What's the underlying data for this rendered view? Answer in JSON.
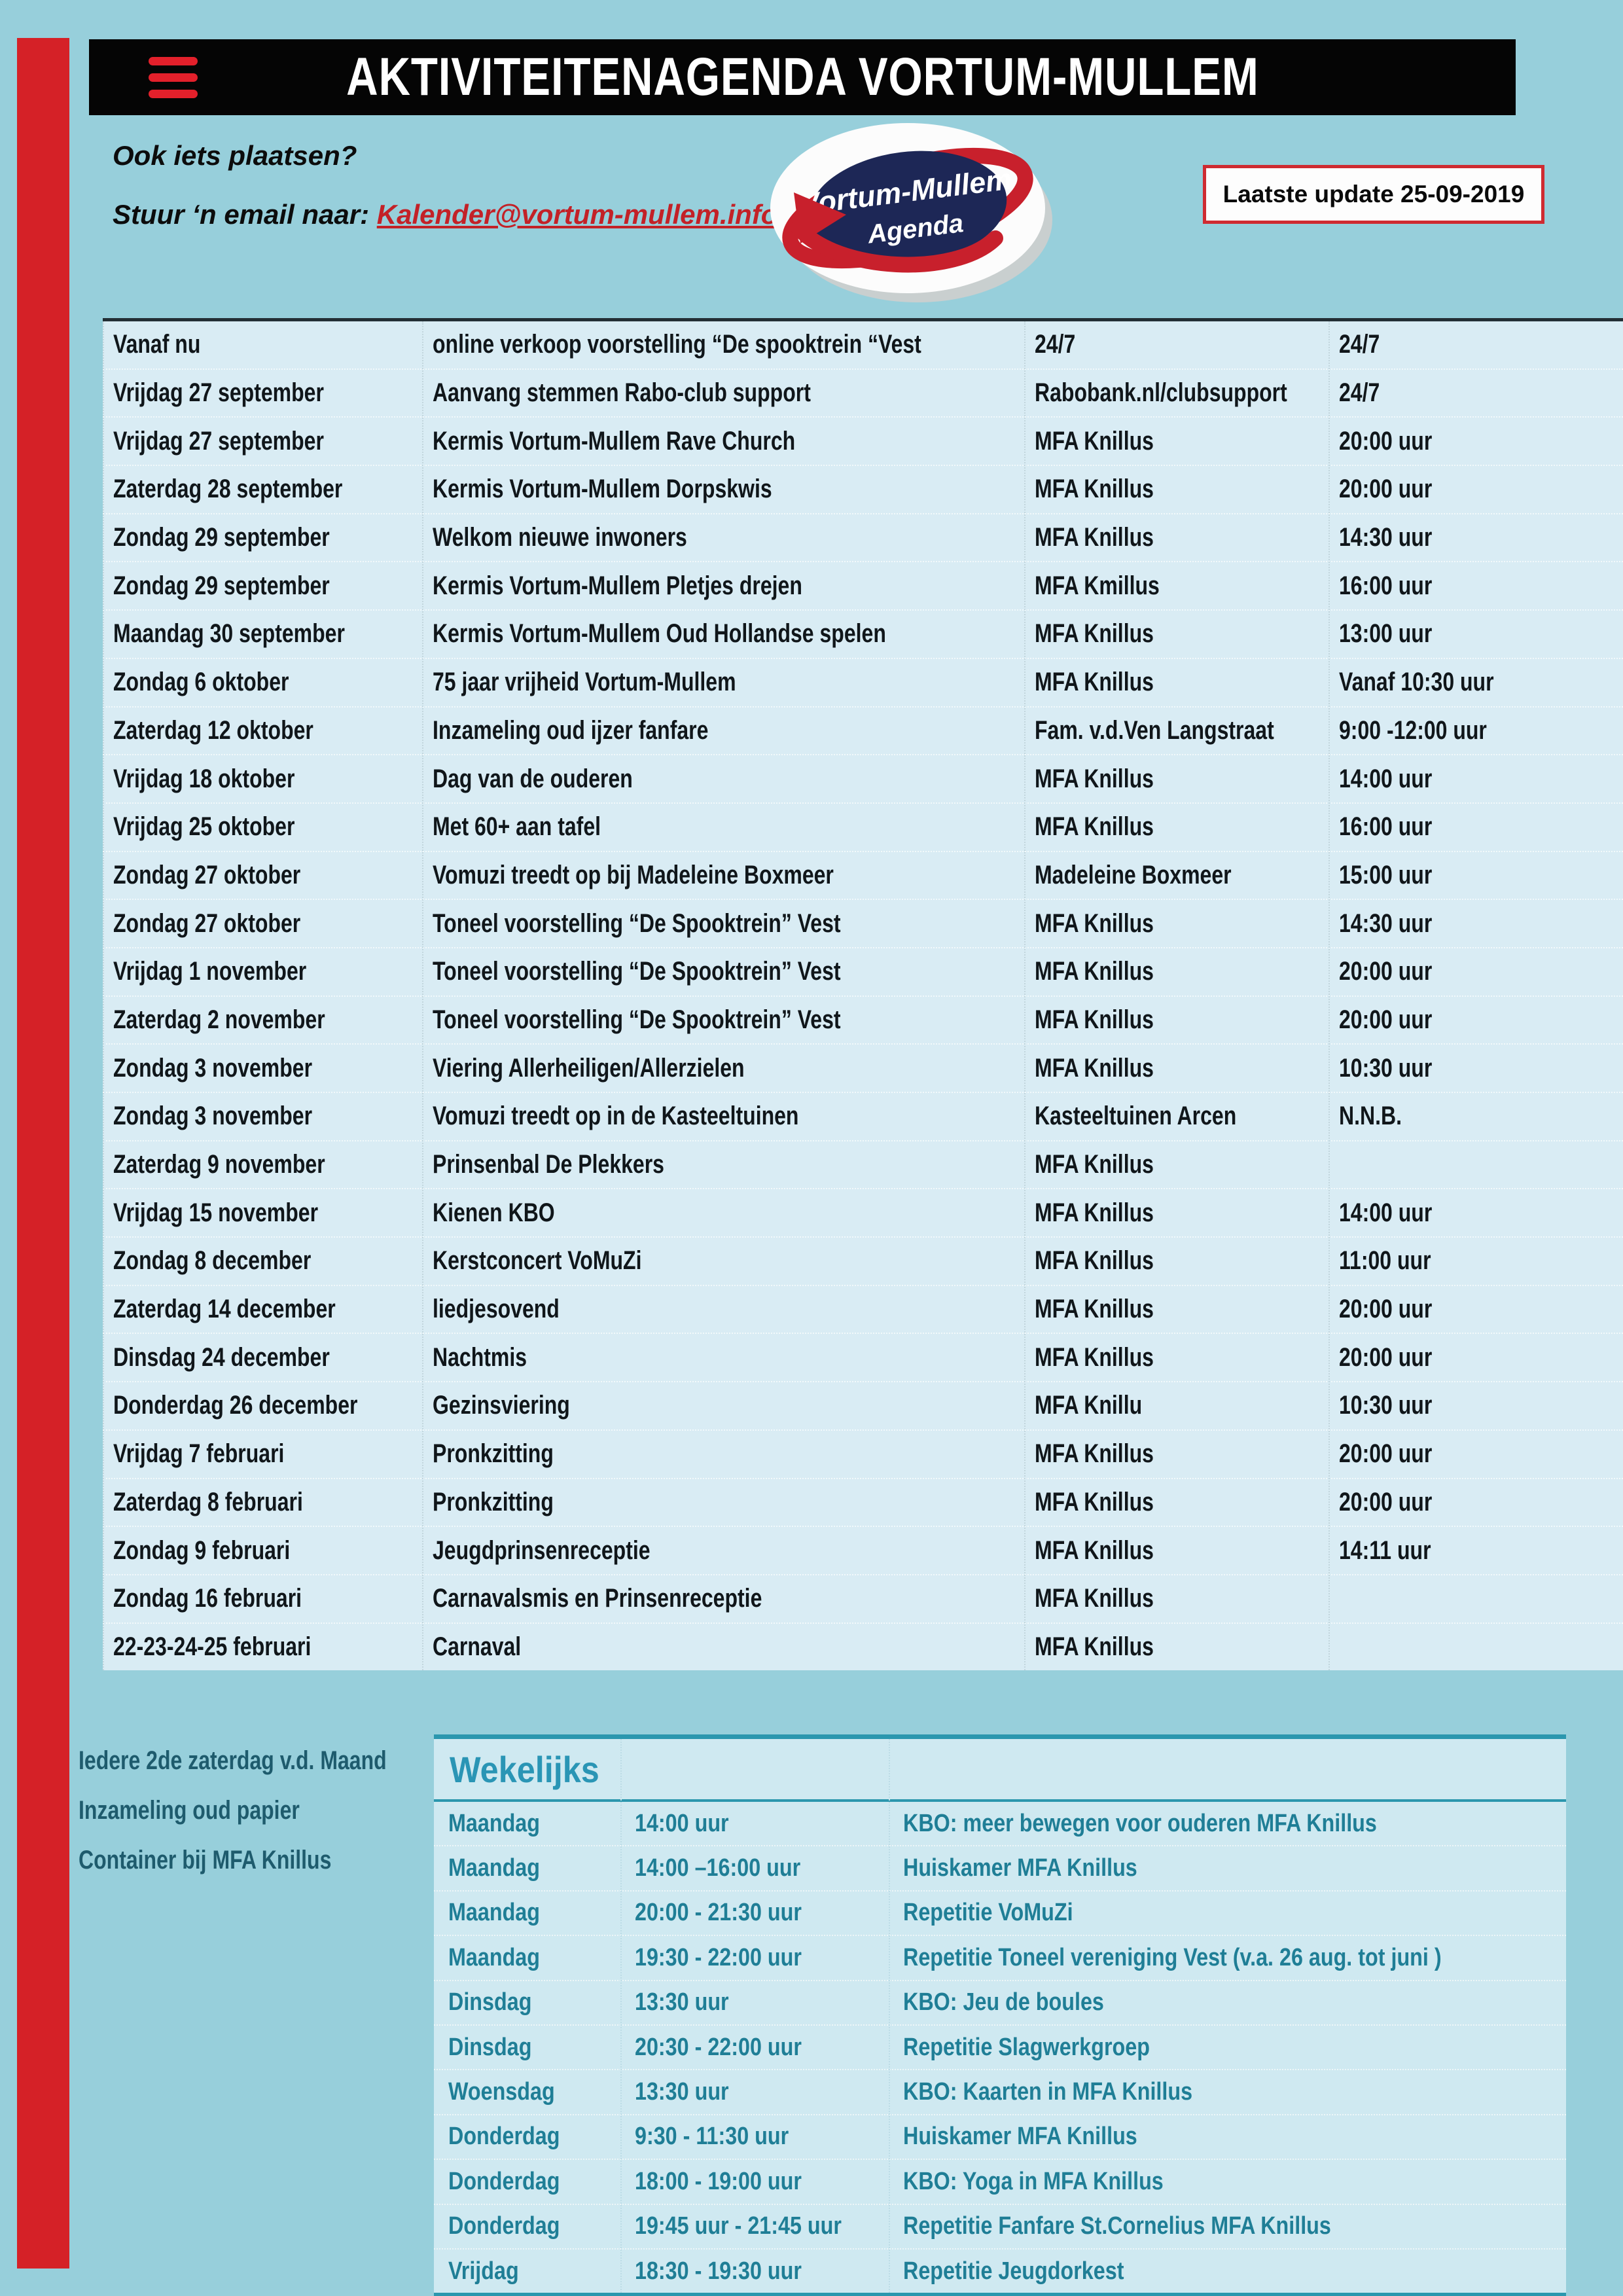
{
  "colors": {
    "page_background": "#97cfdb",
    "accent_red": "#d52127",
    "header_black": "#050505",
    "table_row_blue": "#d9ecf4",
    "weekly_blue": "#cfe9f1",
    "teal_border": "#2b97ae",
    "teal_text": "#1f7e96",
    "note_text": "#1e5b6d",
    "link_red": "#c32127"
  },
  "header": {
    "title": "AKTIVITEITENAGENDA VORTUM-MULLEM"
  },
  "contact": {
    "line1": "Ook iets plaatsen?",
    "line2_prefix": "Stuur ‘n email naar: ",
    "email": "Kalender@vortum-mullem.info"
  },
  "logo": {
    "line1": "Vortum-Mullem",
    "line2": "Agenda"
  },
  "update": {
    "label": "Laatste update 25-09-2019"
  },
  "agenda": {
    "rows": [
      {
        "date": "Vanaf nu",
        "event": "online verkoop voorstelling  “De spooktrein “Vest",
        "location": "24/7",
        "time": "24/7"
      },
      {
        "date": "Vrijdag 27 september",
        "event": "Aanvang stemmen Rabo-club support",
        "location": "Rabobank.nl/clubsupport",
        "time": "24/7"
      },
      {
        "date": "Vrijdag 27 september",
        "event": "Kermis Vortum-Mullem Rave Church",
        "location": "MFA Knillus",
        "time": "20:00 uur"
      },
      {
        "date": "Zaterdag 28 september",
        "event": "Kermis Vortum-Mullem Dorpskwis",
        "location": "MFA Knillus",
        "time": "20:00 uur"
      },
      {
        "date": "Zondag 29 september",
        "event": "Welkom nieuwe inwoners",
        "location": "MFA Knillus",
        "time": "14:30 uur"
      },
      {
        "date": "Zondag 29 september",
        "event": "Kermis Vortum-Mullem Pletjes drejen",
        "location": "MFA Kmillus",
        "time": "16:00 uur"
      },
      {
        "date": "Maandag 30 september",
        "event": "Kermis Vortum-Mullem Oud Hollandse spelen",
        "location": "MFA Knillus",
        "time": "13:00 uur"
      },
      {
        "date": "Zondag 6 oktober",
        "event": "75 jaar vrijheid Vortum-Mullem",
        "location": "MFA Knillus",
        "time": "Vanaf 10:30 uur"
      },
      {
        "date": "Zaterdag 12 oktober",
        "event": "Inzameling oud ijzer fanfare",
        "location": "Fam. v.d.Ven Langstraat",
        "time": "9:00 -12:00 uur"
      },
      {
        "date": "Vrijdag 18 oktober",
        "event": "Dag van de ouderen",
        "location": "MFA Knillus",
        "time": "14:00 uur"
      },
      {
        "date": "Vrijdag 25 oktober",
        "event": "Met 60+ aan tafel",
        "location": "MFA Knillus",
        "time": "16:00 uur"
      },
      {
        "date": "Zondag 27 oktober",
        "event": "Vomuzi treedt op bij Madeleine Boxmeer",
        "location": "Madeleine Boxmeer",
        "time": "15:00 uur"
      },
      {
        "date": "Zondag 27 oktober",
        "event": "Toneel voorstelling “De Spooktrein”  Vest",
        "location": "MFA Knillus",
        "time": "14:30 uur"
      },
      {
        "date": "Vrijdag 1 november",
        "event": "Toneel voorstelling “De Spooktrein”  Vest",
        "location": "MFA Knillus",
        "time": "20:00 uur"
      },
      {
        "date": "Zaterdag 2 november",
        "event": "Toneel voorstelling “De Spooktrein”  Vest",
        "location": "MFA Knillus",
        "time": "20:00 uur"
      },
      {
        "date": "Zondag 3 november",
        "event": "Viering Allerheiligen/Allerzielen",
        "location": "MFA Knillus",
        "time": "10:30 uur"
      },
      {
        "date": "Zondag 3 november",
        "event": "Vomuzi treedt op in de Kasteeltuinen",
        "location": "Kasteeltuinen Arcen",
        "time": "N.N.B."
      },
      {
        "date": "Zaterdag  9 november",
        "event": "Prinsenbal De Plekkers",
        "location": "MFA Knillus",
        "time": ""
      },
      {
        "date": "Vrijdag 15 november",
        "event": "Kienen KBO",
        "location": "MFA Knillus",
        "time": "14:00 uur"
      },
      {
        "date": "Zondag 8 december",
        "event": "Kerstconcert VoMuZi",
        "location": "MFA Knillus",
        "time": "11:00 uur"
      },
      {
        "date": "Zaterdag 14 december",
        "event": "liedjesovend",
        "location": "MFA Knillus",
        "time": "20:00 uur"
      },
      {
        "date": "Dinsdag 24 december",
        "event": "Nachtmis",
        "location": "MFA Knillus",
        "time": "20:00 uur"
      },
      {
        "date": "Donderdag 26 december",
        "event": "Gezinsviering",
        "location": "MFA Knillu",
        "time": "10:30 uur"
      },
      {
        "date": "Vrijdag 7 februari",
        "event": "Pronkzitting",
        "location": "MFA Knillus",
        "time": "20:00 uur"
      },
      {
        "date": "Zaterdag 8 februari",
        "event": "Pronkzitting",
        "location": "MFA Knillus",
        "time": "20:00 uur"
      },
      {
        "date": "Zondag 9 februari",
        "event": "Jeugdprinsenreceptie",
        "location": "MFA Knillus",
        "time": "14:11 uur"
      },
      {
        "date": "Zondag 16 februari",
        "event": "Carnavalsmis en Prinsenreceptie",
        "location": "MFA Knillus",
        "time": ""
      },
      {
        "date": "22-23-24-25 februari",
        "event": "Carnaval",
        "location": "MFA Knillus",
        "time": ""
      }
    ]
  },
  "paper_note": {
    "lines": [
      "Iedere 2de  zaterdag  v.d. Maand",
      "Inzameling oud papier",
      "Container bij  MFA Knillus"
    ]
  },
  "weekly": {
    "title": "Wekelijks",
    "rows": [
      {
        "day": "Maandag",
        "time": "14:00 uur",
        "activity": "KBO: meer bewegen voor ouderen MFA Knillus"
      },
      {
        "day": "Maandag",
        "time": "14:00 –16:00 uur",
        "activity": "Huiskamer MFA Knillus"
      },
      {
        "day": "Maandag",
        "time": "20:00 -  21:30 uur",
        "activity": "Repetitie VoMuZi"
      },
      {
        "day": "Maandag",
        "time": "19:30  - 22:00 uur",
        "activity": "Repetitie Toneel vereniging Vest (v.a. 26 aug. tot juni )"
      },
      {
        "day": "Dinsdag",
        "time": "13:30 uur",
        "activity": "KBO: Jeu de boules"
      },
      {
        "day": "Dinsdag",
        "time": "20:30  - 22:00 uur",
        "activity": "Repetitie Slagwerkgroep"
      },
      {
        "day": "Woensdag",
        "time": "13:30 uur",
        "activity": "KBO: Kaarten in MFA Knillus"
      },
      {
        "day": "Donderdag",
        "time": "9:30 - 11:30 uur",
        "activity": "Huiskamer MFA Knillus"
      },
      {
        "day": "Donderdag",
        "time": "18:00 -  19:00 uur",
        "activity": "KBO: Yoga in MFA Knillus"
      },
      {
        "day": "Donderdag",
        "time": "19:45 uur -  21:45 uur",
        "activity": "Repetitie Fanfare St.Cornelius MFA Knillus"
      },
      {
        "day": "Vrijdag",
        "time": "18:30 - 19:30 uur",
        "activity": "Repetitie Jeugdorkest"
      }
    ]
  }
}
